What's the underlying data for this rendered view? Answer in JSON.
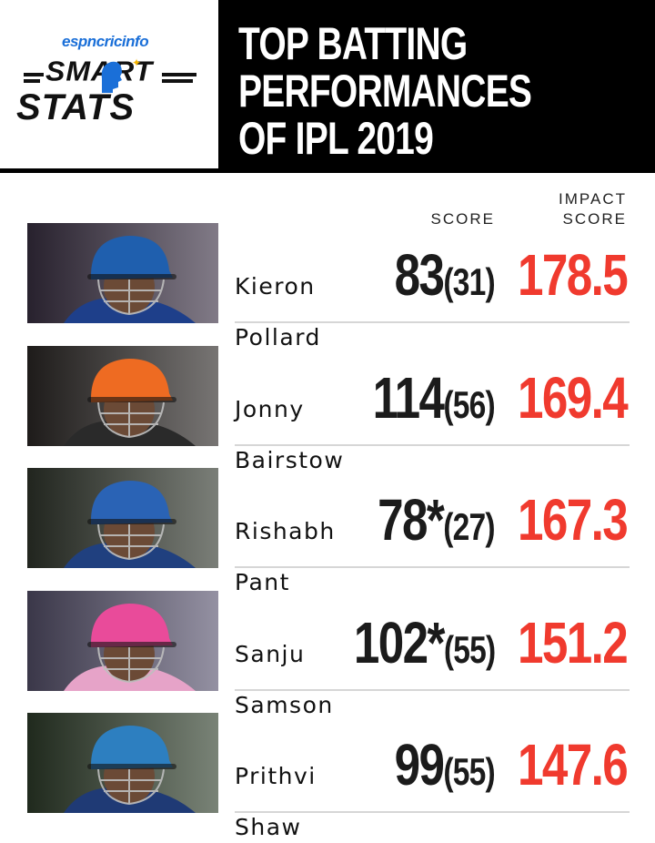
{
  "header": {
    "brand_prefix": "espn",
    "brand_suffix": "cricinfo",
    "logo_line1": "SMART",
    "logo_line2": "STATS",
    "title_lines": [
      "TOP BATTING",
      "PERFORMANCES",
      "OF IPL 2019"
    ]
  },
  "columns": {
    "score": "SCORE",
    "impact_line1": "IMPACT",
    "impact_line2": "SCORE"
  },
  "colors": {
    "impact": "#f03a2e",
    "header_bg": "#000000"
  },
  "players": [
    {
      "name_line1": "Kieron",
      "name_line2": "Pollard",
      "runs": "83",
      "balls": "(31)",
      "impact": "178.5",
      "helmet": "#1f5fae",
      "jersey": "#1e3f8a",
      "bg": "#3d3346"
    },
    {
      "name_line1": "Jonny",
      "name_line2": "Bairstow",
      "runs": "114",
      "balls": "(56)",
      "impact": "169.4",
      "helmet": "#ee6b22",
      "jersey": "#2a2a2a",
      "bg": "#2e2a28"
    },
    {
      "name_line1": "Rishabh",
      "name_line2": "Pant",
      "runs": "78*",
      "balls": "(27)",
      "impact": "167.3",
      "helmet": "#2a63b5",
      "jersey": "#20407f",
      "bg": "#33392f"
    },
    {
      "name_line1": "Sanju",
      "name_line2": "Samson",
      "runs": "102*",
      "balls": "(55)",
      "impact": "151.2",
      "helmet": "#e94b9a",
      "jersey": "#e6a3c8",
      "bg": "#5a5570"
    },
    {
      "name_line1": "Prithvi",
      "name_line2": "Shaw",
      "runs": "99",
      "balls": "(55)",
      "impact": "147.6",
      "helmet": "#2d7fc0",
      "jersey": "#1f3a75",
      "bg": "#31402d"
    }
  ]
}
